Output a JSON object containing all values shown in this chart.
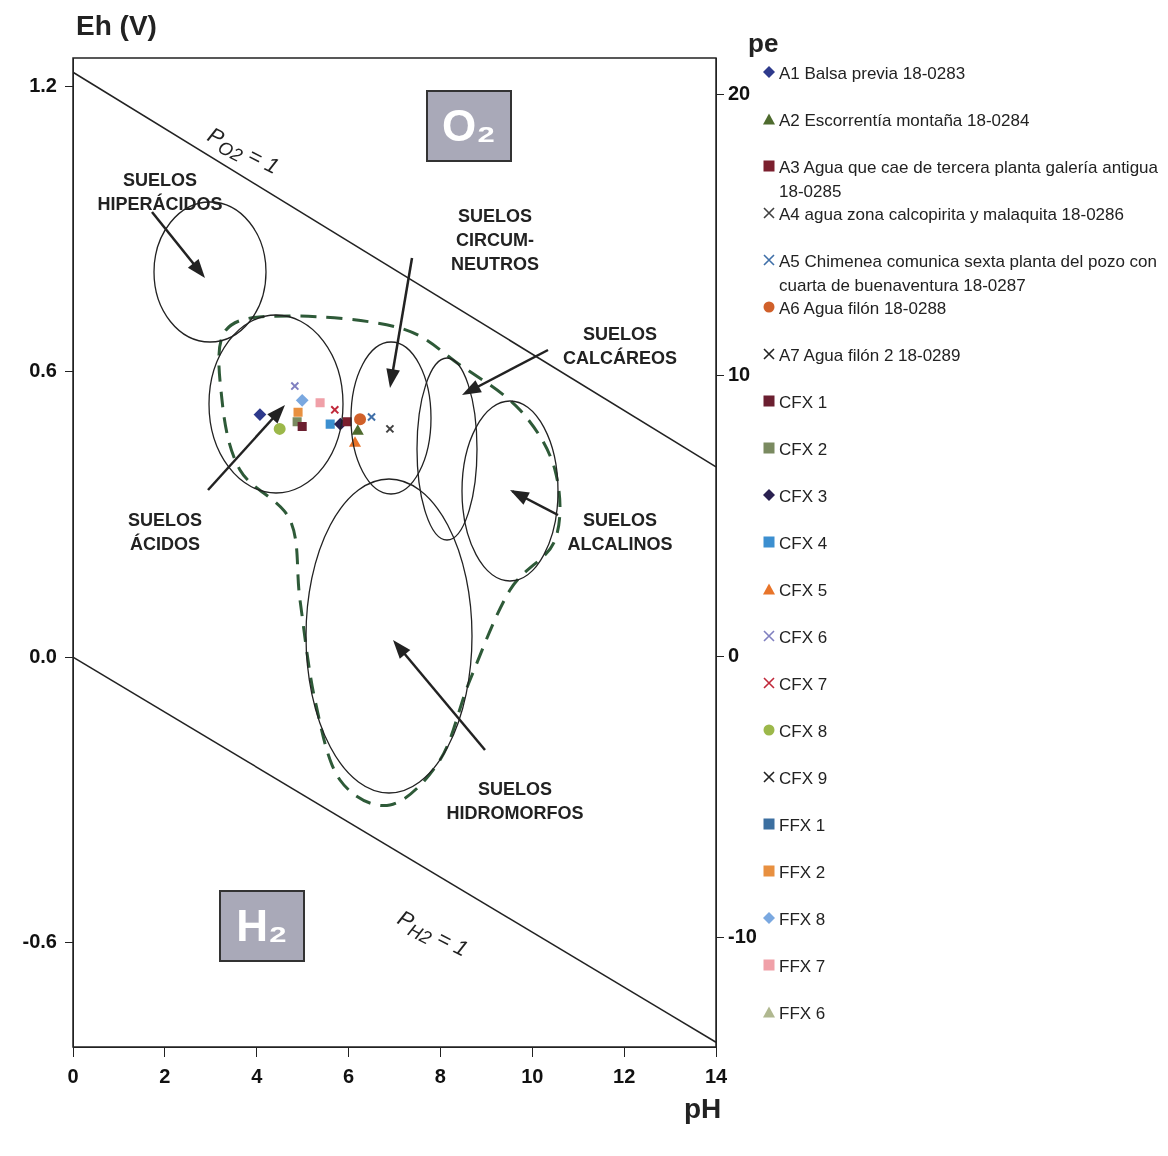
{
  "chart_data": {
    "type": "scatter",
    "xlabel": "pH",
    "ylabel": "Eh (V)",
    "y2label": "pe",
    "xlim": [
      0,
      14
    ],
    "xticks": [
      0,
      2,
      4,
      6,
      8,
      10,
      12,
      14
    ],
    "ylim": [
      -0.82,
      1.26
    ],
    "yticks": [
      {
        "value": 1.2,
        "label": "1.2"
      },
      0.6,
      {
        "value": 0,
        "label": "0.0"
      },
      -0.6
    ],
    "y2lim": [
      -13.9,
      21.3
    ],
    "y2ticks": [
      20,
      10,
      0,
      -10
    ],
    "legend": "right",
    "grid": false,
    "annotations": [
      "SUELOS HIPERÁCIDOS",
      "SUELOS CIRCUM-NEUTROS",
      "SUELOS CALCÁREOS",
      "SUELOS ÁCIDOS",
      "SUELOS ALCALINOS",
      "SUELOS HIDROMORFOS",
      "O₂",
      "H₂",
      "P$_{O2}$ = 1",
      "P$_{H2}$ = 1"
    ],
    "series": [
      {
        "type": "line",
        "color": "#222222",
        "x": [
          0,
          14
        ],
        "values": [
          1.23,
          0.4
        ]
      },
      {
        "type": "line",
        "color": "#222222",
        "x": [
          0,
          14
        ],
        "values": [
          0,
          -0.81
        ]
      },
      {
        "name": "A1 Balsa previa 18-0283",
        "color": "#2e3a8c",
        "marker": "diamond",
        "x": [
          4.07
        ],
        "values": [
          0.51
        ]
      },
      {
        "name": "A2 Escorrentía montaña 18-0284",
        "color": "#4e6b2e",
        "marker": "triangle",
        "x": [
          6.2
        ],
        "values": [
          0.475
        ]
      },
      {
        "name": "A3 Agua que cae de tercera planta galería antigua 18-0285",
        "color": "#7b1f2e",
        "marker": "square",
        "x": [
          5.97
        ],
        "values": [
          0.495
        ]
      },
      {
        "name": "A4 agua zona calcopirita y malaquita 18-0286",
        "color": "#404040",
        "marker": "cross",
        "x": [
          6.9
        ],
        "values": [
          0.48
        ]
      },
      {
        "name": "A5 Chimenea comunica sexta planta del pozo con cuarta de buenaventura 18-0287",
        "color": "#3f6fa8",
        "marker": "cross",
        "x": [
          6.5
        ],
        "values": [
          0.505
        ]
      },
      {
        "name": "A6 Agua filón  18-0288",
        "color": "#d0602a",
        "marker": "circle",
        "x": [
          6.25
        ],
        "values": [
          0.5
        ]
      },
      {
        "name": "A7 Agua filón 2 18-0289",
        "color": "#222222",
        "marker": "cross",
        "x": [
          null
        ],
        "values": [
          null
        ]
      },
      {
        "name": "CFX 1",
        "color": "#6b1f30",
        "marker": "square",
        "x": [
          4.99
        ],
        "values": [
          0.485
        ]
      },
      {
        "name": "CFX 2",
        "color": "#7a8a60",
        "marker": "square",
        "x": [
          4.88
        ],
        "values": [
          0.495
        ]
      },
      {
        "name": "CFX 3",
        "color": "#2a2050",
        "marker": "diamond",
        "x": [
          5.82
        ],
        "values": [
          0.49
        ]
      },
      {
        "name": "CFX 4",
        "color": "#3c8fd0",
        "marker": "square",
        "x": [
          5.6
        ],
        "values": [
          0.49
        ]
      },
      {
        "name": "CFX 5",
        "color": "#e8742a",
        "marker": "triangle",
        "x": [
          6.14
        ],
        "values": [
          0.45
        ]
      },
      {
        "name": "CFX 6",
        "color": "#8080c0",
        "marker": "cross",
        "x": [
          4.83
        ],
        "values": [
          0.57
        ]
      },
      {
        "name": "CFX 7",
        "color": "#c0283a",
        "marker": "cross",
        "x": [
          5.7
        ],
        "values": [
          0.52
        ]
      },
      {
        "name": "CFX 8",
        "color": "#9cb84a",
        "marker": "circle",
        "x": [
          4.5
        ],
        "values": [
          0.48
        ]
      },
      {
        "name": "CFX 9",
        "color": "#222222",
        "marker": "cross",
        "x": [
          null
        ],
        "values": [
          null
        ]
      },
      {
        "name": "FFX 1",
        "color": "#3c6fa0",
        "marker": "square",
        "x": [
          null
        ],
        "values": [
          null
        ]
      },
      {
        "name": "FFX 2",
        "color": "#e89040",
        "marker": "square",
        "x": [
          4.9
        ],
        "values": [
          0.515
        ]
      },
      {
        "name": "FFX 8",
        "color": "#7aa8e0",
        "marker": "diamond",
        "x": [
          4.99
        ],
        "values": [
          0.54
        ]
      },
      {
        "name": "FFX 7",
        "color": "#f0a0a8",
        "marker": "square",
        "x": [
          5.38
        ],
        "values": [
          0.535
        ]
      },
      {
        "name": "FFX 6",
        "color": "#b0b890",
        "marker": "triangle",
        "x": [
          null
        ],
        "values": [
          null
        ]
      }
    ]
  }
}
